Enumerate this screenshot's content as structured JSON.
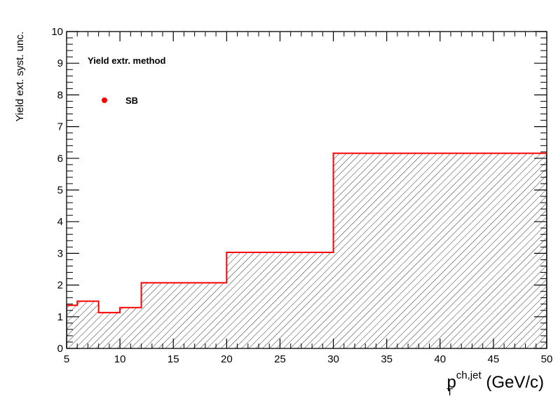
{
  "chart_data": {
    "type": "step-histogram",
    "x_bin_edges": [
      5,
      6,
      8,
      10,
      12,
      20,
      30,
      50
    ],
    "values": [
      1.36,
      1.49,
      1.13,
      1.29,
      2.07,
      3.03,
      6.16
    ],
    "xlim": [
      5,
      50
    ],
    "ylim": [
      0,
      10
    ],
    "x_ticks": [
      5,
      10,
      15,
      20,
      25,
      30,
      35,
      40,
      45,
      50
    ],
    "y_ticks": [
      0,
      1,
      2,
      3,
      4,
      5,
      6,
      7,
      8,
      9,
      10
    ],
    "ylabel": "Yield ext. syst. unc.",
    "xlabel": {
      "base": "p",
      "superscript": "ch,jet",
      "subscript": "T",
      "unit": " (GeV/c)"
    },
    "legend": {
      "header": "Yield extr. method",
      "entries": [
        {
          "name": "SB",
          "color": "#ff0000"
        }
      ],
      "placement": "top-left"
    },
    "fill": "hatched",
    "line_color": "#ff0000",
    "grid": false
  }
}
